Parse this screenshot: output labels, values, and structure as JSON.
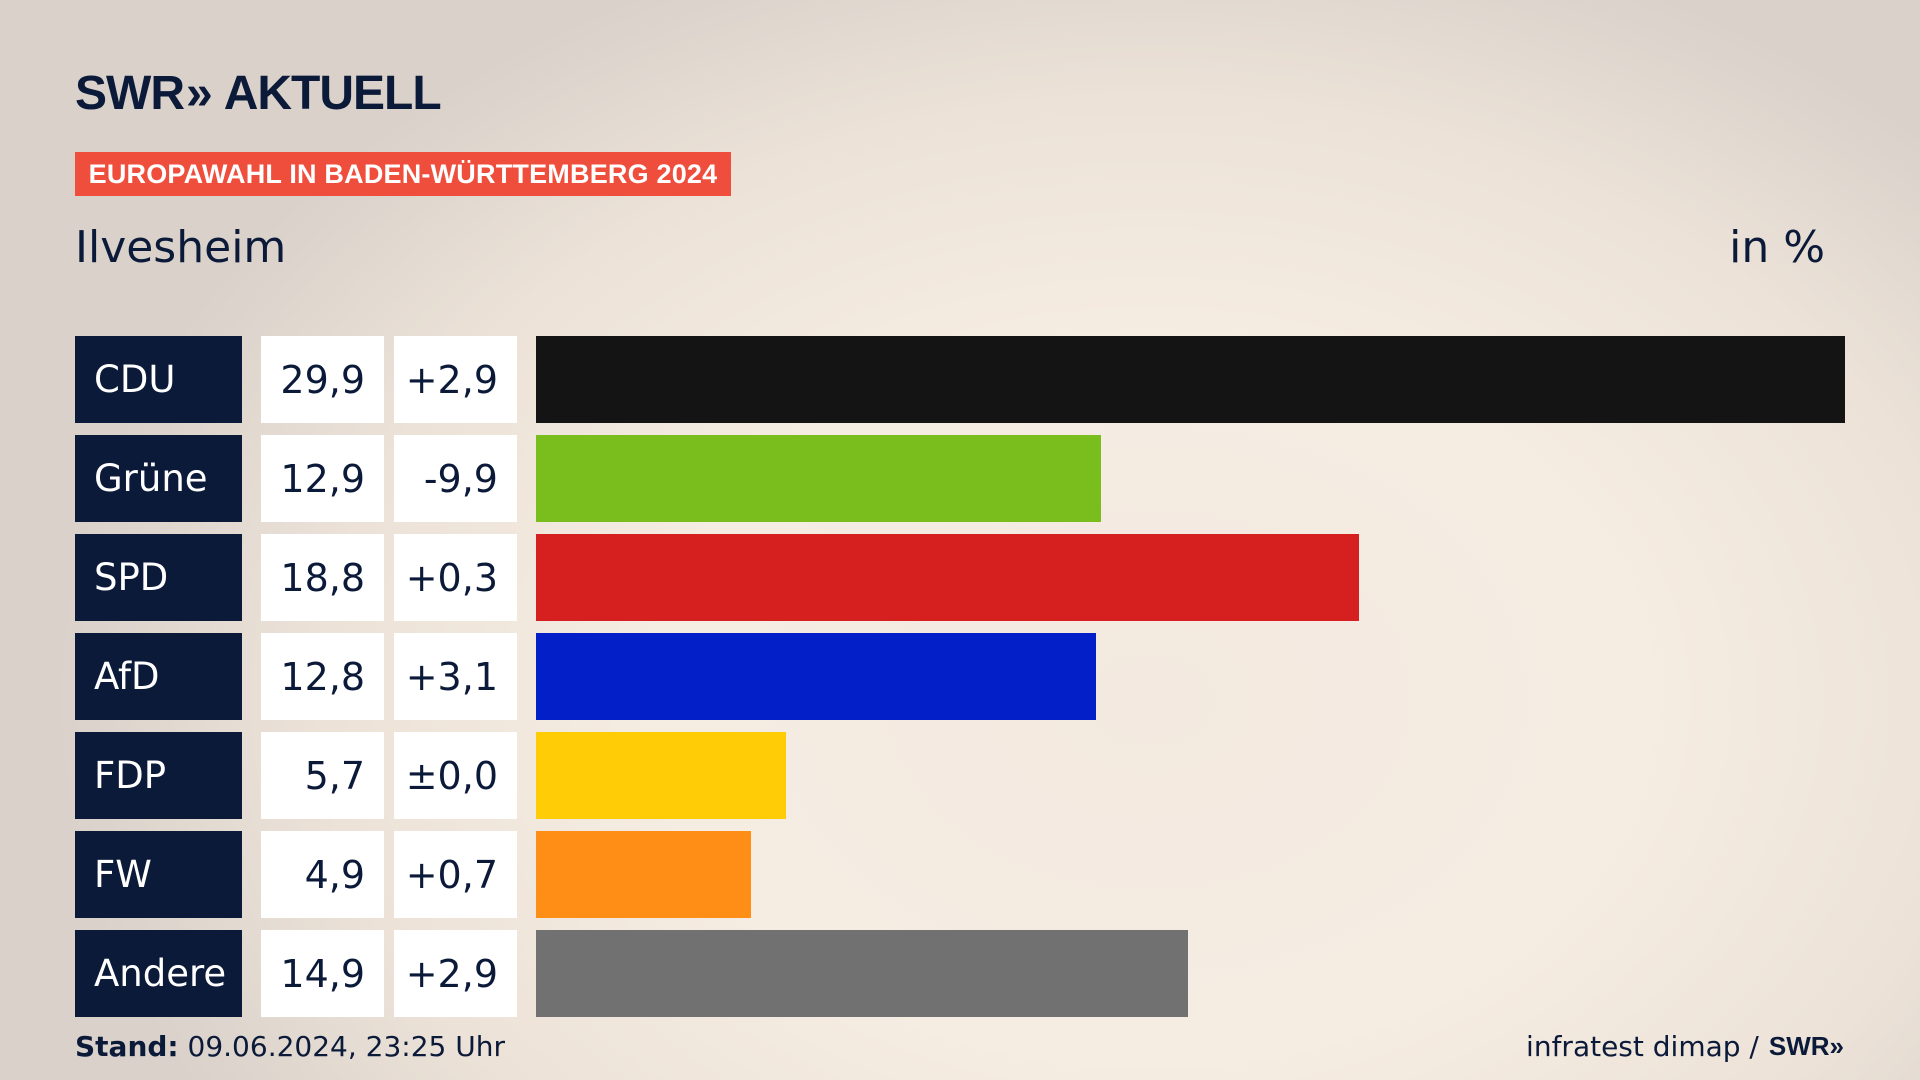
{
  "header": {
    "logo_text": "SWR",
    "logo_chevron": "»",
    "logo_suffix": "AKTUELL",
    "badge": "EUROPAWAHL IN BADEN-WÜRTTEMBERG 2024",
    "region": "Ilvesheim",
    "unit": "in %"
  },
  "chart_data": {
    "type": "bar",
    "orientation": "horizontal",
    "categories": [
      "CDU",
      "Grüne",
      "SPD",
      "AfD",
      "FDP",
      "FW",
      "Andere"
    ],
    "values": [
      29.9,
      12.9,
      18.8,
      12.8,
      5.7,
      4.9,
      14.9
    ],
    "value_labels": [
      "29,9",
      "12,9",
      "18,8",
      "12,8",
      "5,7",
      "4,9",
      "14,9"
    ],
    "change_labels": [
      "+2,9",
      "-9,9",
      "+0,3",
      "+3,1",
      "±0,0",
      "+0,7",
      "+2,9"
    ],
    "colors": [
      "#141414",
      "#7abe1d",
      "#d61f1f",
      "#0320c8",
      "#ffcc06",
      "#ff8e16",
      "#717171"
    ],
    "xlim": [
      0,
      29.9
    ],
    "grid": false,
    "legend": "none"
  },
  "footer": {
    "stand_label": "Stand:",
    "stand_value": "09.06.2024, 23:25 Uhr",
    "source": "infratest dimap /",
    "source_logo": "SWR»"
  }
}
